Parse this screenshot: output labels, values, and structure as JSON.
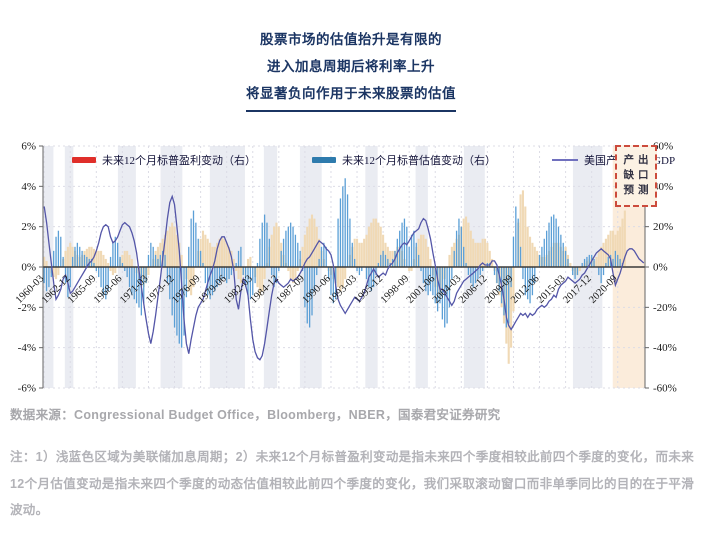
{
  "title": {
    "line1": "股票市场的估值抬升是有限的",
    "line2": "进入加息周期后将利率上升",
    "line3": "将显著负向作用于未来股票的估值"
  },
  "source_line": "数据来源：Congressional Budget Office，Bloomberg，NBER，国泰君安证券研究",
  "note": "注：1）浅蓝色区域为美联储加息周期；2）未来12个月标普盈利变动是指未来四个季度相较此前四个季度的变化，而未来12个月估值变动是指未来四个季度的动态估值相较此前四个季度的变化，我们采取滚动窗口而非单季同比的目的在于平滑波动。",
  "forecast_box": {
    "rows": [
      "产出",
      "缺口",
      "预测"
    ],
    "border_color": "#cc4b3c"
  },
  "colors": {
    "title": "#1b3563",
    "earnings_bar": "#f0d9b5",
    "valuation_bar": "#5b9fd6",
    "line": "#5456a8",
    "legend_red": "#e02f2a",
    "legend_blue": "#2e7bad",
    "legend_line": "#7070be",
    "hike_band": "#e6e9f0",
    "forecast_band": "#fae6cf",
    "grid": "#dcdce6",
    "zero_line": "#3a3a3a"
  },
  "chart_data": {
    "type": "bar",
    "subtype": "dual-axis bars with overlay line",
    "x_start_year": 1960.125,
    "x_step_years": 0.25,
    "x_tick_labels": [
      "1960-03",
      "1962-12",
      "1965-09",
      "1968-06",
      "1971-03",
      "1973-12",
      "1976-09",
      "1979-06",
      "1982-03",
      "1984-12",
      "1987-09",
      "1990-06",
      "1993-03",
      "1995-12",
      "1998-09",
      "2001-06",
      "2004-03",
      "2006-12",
      "2009-09",
      "2012-06",
      "2015-03",
      "2017-12",
      "2020-09"
    ],
    "left_axis": {
      "ticks": [
        "6%",
        "4%",
        "2%",
        "0%",
        "-2%",
        "-4%",
        "-6%"
      ],
      "range": [
        -6,
        6
      ]
    },
    "right_axis": {
      "ticks": [
        "60%",
        "40%",
        "20%",
        "0%",
        "-20%",
        "-40%",
        "-60%"
      ],
      "range": [
        -60,
        60
      ]
    },
    "legend": [
      {
        "label": "未来12个月标普盈利变动（右）",
        "color": "#e02f2a",
        "kind": "bar"
      },
      {
        "label": "未来12个月标普估值变动（右）",
        "color": "#2e7bad",
        "kind": "bar"
      },
      {
        "label": "美国产出缺口/GDP",
        "color": "#7070be",
        "kind": "line"
      }
    ],
    "series": [
      {
        "name": "未来12个月标普盈利变动（右）",
        "axis": "right",
        "color": "#f0d9b5",
        "values": [
          5,
          3,
          0,
          -3,
          -5,
          -6,
          -4,
          0,
          4,
          8,
          10,
          12,
          10,
          8,
          6,
          5,
          6,
          8,
          9,
          10,
          10,
          9,
          8,
          8,
          8,
          6,
          4,
          2,
          -2,
          -4,
          -3,
          0,
          4,
          6,
          8,
          8,
          6,
          4,
          0,
          -3,
          -6,
          -8,
          -10,
          -8,
          -4,
          0,
          4,
          8,
          10,
          12,
          14,
          16,
          18,
          20,
          22,
          20,
          16,
          12,
          6,
          0,
          -6,
          -12,
          -14,
          -10,
          0,
          8,
          14,
          18,
          16,
          14,
          12,
          10,
          10,
          12,
          14,
          15,
          14,
          12,
          10,
          8,
          4,
          -2,
          -6,
          -8,
          -4,
          0,
          4,
          5,
          0,
          -5,
          -10,
          -14,
          -12,
          -6,
          2,
          10,
          16,
          20,
          22,
          20,
          12,
          6,
          2,
          -2,
          -6,
          -8,
          -6,
          -2,
          4,
          10,
          16,
          20,
          24,
          26,
          24,
          20,
          14,
          8,
          4,
          0,
          -2,
          -4,
          -6,
          -8,
          -10,
          -12,
          -10,
          -6,
          0,
          6,
          10,
          14,
          14,
          12,
          12,
          14,
          16,
          20,
          22,
          24,
          24,
          22,
          20,
          16,
          12,
          10,
          8,
          8,
          8,
          10,
          10,
          8,
          4,
          0,
          -2,
          -2,
          4,
          10,
          14,
          16,
          16,
          14,
          10,
          4,
          -4,
          -10,
          -14,
          -16,
          -12,
          -6,
          0,
          6,
          10,
          12,
          14,
          16,
          20,
          24,
          25,
          22,
          18,
          14,
          12,
          12,
          12,
          14,
          14,
          12,
          8,
          4,
          -2,
          -8,
          -14,
          -20,
          -28,
          -38,
          -48,
          -40,
          -22,
          0,
          22,
          36,
          38,
          30,
          20,
          15,
          12,
          10,
          8,
          6,
          5,
          5,
          6,
          8,
          10,
          12,
          12,
          12,
          10,
          8,
          10,
          6,
          2,
          -2,
          -4,
          -4,
          -2,
          0,
          2,
          3,
          4,
          5,
          3,
          5,
          8,
          10,
          12,
          14,
          16,
          18,
          18,
          16,
          18,
          20,
          24,
          28
        ]
      },
      {
        "name": "未来12个月标普估值变动（右）",
        "axis": "right",
        "color": "#5b9fd6",
        "values": [
          -8,
          -12,
          -10,
          -5,
          8,
          15,
          18,
          15,
          5,
          -8,
          -15,
          -10,
          5,
          10,
          12,
          10,
          8,
          6,
          5,
          4,
          4,
          2,
          -2,
          -5,
          -10,
          -14,
          -16,
          -12,
          5,
          12,
          15,
          12,
          5,
          2,
          -2,
          -5,
          -10,
          -14,
          -16,
          -18,
          -20,
          -24,
          -18,
          -8,
          6,
          12,
          10,
          6,
          4,
          6,
          8,
          6,
          -8,
          -16,
          -24,
          -30,
          -34,
          -38,
          -40,
          -34,
          -15,
          10,
          24,
          28,
          22,
          14,
          8,
          2,
          -8,
          -14,
          -16,
          -14,
          -12,
          -10,
          -8,
          -6,
          -6,
          -8,
          -6,
          -4,
          -2,
          2,
          8,
          10,
          -4,
          -10,
          -14,
          -16,
          -14,
          -8,
          2,
          14,
          22,
          26,
          22,
          14,
          -4,
          -10,
          -8,
          -2,
          8,
          14,
          18,
          20,
          22,
          20,
          16,
          12,
          8,
          -2,
          -20,
          -28,
          -30,
          -24,
          -12,
          -4,
          4,
          10,
          12,
          10,
          -6,
          -14,
          -18,
          -16,
          24,
          34,
          40,
          44,
          36,
          24,
          12,
          4,
          -2,
          -4,
          -2,
          0,
          -6,
          -10,
          -12,
          -10,
          -4,
          2,
          6,
          8,
          6,
          4,
          2,
          4,
          8,
          14,
          18,
          22,
          24,
          20,
          10,
          16,
          18,
          12,
          6,
          -2,
          -8,
          -12,
          -14,
          -12,
          -14,
          -18,
          -22,
          -18,
          -26,
          -30,
          -28,
          -20,
          -6,
          8,
          18,
          24,
          20,
          10,
          2,
          -4,
          -8,
          -10,
          -8,
          -6,
          -4,
          -2,
          0,
          2,
          2,
          0,
          -4,
          -8,
          -12,
          -18,
          -24,
          -30,
          -28,
          -10,
          15,
          30,
          24,
          10,
          -6,
          -14,
          -16,
          -18,
          -14,
          -8,
          0,
          6,
          10,
          14,
          18,
          22,
          25,
          26,
          24,
          20,
          16,
          12,
          8,
          4,
          0,
          -4,
          -6,
          -4,
          0,
          2,
          4,
          5,
          6,
          6,
          4,
          0,
          -4,
          -8,
          -4,
          2,
          5,
          6,
          4,
          8,
          6,
          4,
          2,
          0
        ]
      }
    ],
    "line_series": {
      "name": "美国产出缺口/GDP",
      "axis": "left",
      "color": "#5456a8",
      "values": [
        3.0,
        2.2,
        1.2,
        0.2,
        -0.8,
        -1.6,
        -1.4,
        -1.1,
        -0.6,
        -0.4,
        -0.8,
        -1.3,
        -1.2,
        -1.0,
        -0.8,
        -0.6,
        -0.4,
        -0.2,
        0.0,
        0.2,
        0.3,
        0.5,
        0.8,
        1.2,
        1.7,
        2.0,
        2.1,
        2.0,
        1.5,
        1.2,
        1.3,
        1.5,
        1.8,
        2.1,
        2.2,
        2.1,
        2.0,
        1.7,
        1.3,
        0.7,
        -0.2,
        -1.0,
        -1.8,
        -2.6,
        -3.3,
        -3.8,
        -3.2,
        -2.4,
        -1.5,
        -0.6,
        0.4,
        1.4,
        2.4,
        3.2,
        3.5,
        3.1,
        2.0,
        0.8,
        -0.8,
        -2.6,
        -3.8,
        -4.3,
        -3.6,
        -3.0,
        -2.4,
        -2.0,
        -1.8,
        -1.6,
        -1.2,
        -0.8,
        -0.4,
        -0.1,
        0.3,
        0.9,
        1.3,
        1.5,
        1.5,
        1.2,
        0.9,
        0.5,
        -0.2,
        -1.6,
        -2.1,
        -1.2,
        -0.6,
        -0.9,
        -1.4,
        -2.6,
        -3.6,
        -4.2,
        -4.5,
        -4.6,
        -4.4,
        -3.8,
        -3.0,
        -2.2,
        -1.4,
        -0.8,
        -0.6,
        -0.8,
        -0.9,
        -1.0,
        -0.9,
        -0.8,
        -0.6,
        -0.7,
        -0.6,
        -0.5,
        -0.3,
        -0.1,
        0.2,
        0.4,
        0.5,
        0.7,
        0.9,
        1.1,
        1.3,
        1.2,
        1.1,
        0.9,
        0.8,
        0.6,
        0.1,
        -0.9,
        -1.6,
        -1.9,
        -2.1,
        -2.3,
        -2.1,
        -1.9,
        -1.7,
        -1.5,
        -1.6,
        -1.7,
        -1.5,
        -1.3,
        -0.9,
        -0.5,
        -0.3,
        -0.1,
        -0.3,
        -0.5,
        -0.4,
        -0.3,
        -0.4,
        -0.1,
        0.1,
        0.2,
        0.4,
        0.7,
        0.9,
        1.1,
        1.2,
        1.1,
        1.3,
        1.5,
        1.7,
        1.8,
        1.9,
        2.2,
        2.4,
        2.3,
        1.9,
        1.4,
        0.7,
        0.1,
        -0.6,
        -1.1,
        -1.1,
        -1.3,
        -1.5,
        -1.7,
        -1.9,
        -1.7,
        -1.3,
        -1.1,
        -0.9,
        -0.7,
        -0.6,
        -0.5,
        -0.4,
        -0.3,
        -0.2,
        -0.1,
        0.1,
        0.2,
        0.1,
        0.1,
        0.1,
        0.3,
        0.3,
        0.1,
        -0.4,
        -0.9,
        -1.6,
        -2.5,
        -2.9,
        -3.1,
        -2.9,
        -2.7,
        -2.5,
        -2.3,
        -2.4,
        -2.3,
        -2.5,
        -2.3,
        -2.4,
        -2.3,
        -2.1,
        -2.0,
        -1.9,
        -2.0,
        -1.9,
        -1.7,
        -1.6,
        -1.4,
        -1.5,
        -1.1,
        -0.9,
        -0.8,
        -0.7,
        -0.5,
        -0.6,
        -0.7,
        -0.8,
        -0.7,
        -0.6,
        -0.4,
        -0.3,
        -0.1,
        0.1,
        0.3,
        0.5,
        0.7,
        0.8,
        0.9,
        0.8,
        0.7,
        0.6,
        0.4,
        -0.3,
        -0.9,
        -0.6,
        -0.3,
        0.1,
        0.5,
        0.8,
        0.9,
        0.9,
        0.8,
        0.6,
        0.4,
        0.3,
        0.2
      ]
    },
    "hike_bands": [
      [
        1960.0,
        1961.1
      ],
      [
        1962.3,
        1963.2
      ],
      [
        1967.9,
        1969.8
      ],
      [
        1972.4,
        1974.7
      ],
      [
        1977.6,
        1981.3
      ],
      [
        1983.3,
        1984.7
      ],
      [
        1987.1,
        1989.4
      ],
      [
        1994.0,
        1995.3
      ],
      [
        1999.3,
        2000.6
      ],
      [
        2004.4,
        2006.6
      ],
      [
        2015.9,
        2019.0
      ]
    ],
    "forecast_band": [
      2020.1,
      2023.6
    ]
  }
}
